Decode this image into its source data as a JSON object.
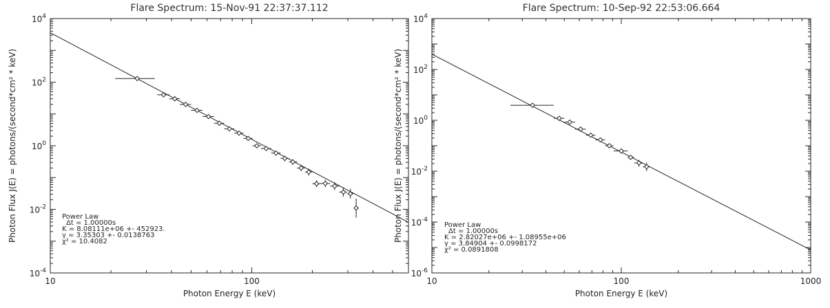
{
  "chart_data": [
    {
      "type": "scatter",
      "title": "Flare Spectrum: 15-Nov-91 22:37:37.112",
      "xlabel": "Photon Energy E (keV)",
      "ylabel": "Photon Flux   J(E) = photons/(second*cm² * keV)",
      "xscale": "log",
      "yscale": "log",
      "xlim": [
        10,
        600
      ],
      "ylim": [
        0.0001,
        10000
      ],
      "x_ticks": [
        {
          "value": 10,
          "label": "10"
        },
        {
          "value": 100,
          "label": "100"
        }
      ],
      "y_ticks": [
        {
          "value": 0.0001,
          "base": "10",
          "exp": "-4"
        },
        {
          "value": 0.01,
          "base": "10",
          "exp": "-2"
        },
        {
          "value": 1,
          "base": "10",
          "exp": "0"
        },
        {
          "value": 100,
          "base": "10",
          "exp": "2"
        },
        {
          "value": 10000,
          "base": "10",
          "exp": "4"
        }
      ],
      "fit": {
        "K": 8081110,
        "gamma": 3.35303
      },
      "points": [
        {
          "x": 27,
          "y": 130,
          "xerr": [
            21,
            33
          ],
          "yerr": [
            110,
            150
          ]
        },
        {
          "x": 36.5,
          "y": 40,
          "xerr": [
            34,
            39
          ],
          "yerr": [
            35,
            46
          ]
        },
        {
          "x": 41.5,
          "y": 30,
          "xerr": [
            39,
            44
          ],
          "yerr": [
            26,
            35
          ]
        },
        {
          "x": 47,
          "y": 20,
          "xerr": [
            44,
            50
          ],
          "yerr": [
            17,
            23
          ]
        },
        {
          "x": 53.5,
          "y": 13,
          "xerr": [
            50,
            57
          ],
          "yerr": [
            11.2,
            15
          ]
        },
        {
          "x": 61,
          "y": 8.3,
          "xerr": [
            57,
            65
          ],
          "yerr": [
            7.1,
            9.6
          ]
        },
        {
          "x": 69,
          "y": 5.1,
          "xerr": [
            65,
            73
          ],
          "yerr": [
            4.4,
            5.9
          ]
        },
        {
          "x": 77.5,
          "y": 3.4,
          "xerr": [
            73,
            82
          ],
          "yerr": [
            2.9,
            3.9
          ]
        },
        {
          "x": 86.5,
          "y": 2.5,
          "xerr": [
            82,
            91
          ],
          "yerr": [
            2.1,
            2.9
          ]
        },
        {
          "x": 96,
          "y": 1.7,
          "xerr": [
            91,
            101
          ],
          "yerr": [
            1.45,
            1.95
          ]
        },
        {
          "x": 106,
          "y": 1.0,
          "xerr": [
            101,
            111
          ],
          "yerr": [
            0.86,
            1.16
          ]
        },
        {
          "x": 118,
          "y": 0.82,
          "xerr": [
            111,
            125
          ],
          "yerr": [
            0.69,
            0.95
          ]
        },
        {
          "x": 132,
          "y": 0.59,
          "xerr": [
            125,
            139
          ],
          "yerr": [
            0.49,
            0.69
          ]
        },
        {
          "x": 146,
          "y": 0.4,
          "xerr": [
            139,
            153
          ],
          "yerr": [
            0.32,
            0.48
          ]
        },
        {
          "x": 160,
          "y": 0.31,
          "xerr": [
            153,
            168
          ],
          "yerr": [
            0.25,
            0.38
          ]
        },
        {
          "x": 176,
          "y": 0.2,
          "xerr": [
            168,
            184
          ],
          "yerr": [
            0.16,
            0.25
          ]
        },
        {
          "x": 192,
          "y": 0.15,
          "xerr": [
            184,
            200
          ],
          "yerr": [
            0.115,
            0.19
          ]
        },
        {
          "x": 210,
          "y": 0.064,
          "xerr": [
            200,
            220
          ],
          "yerr": [
            0.05,
            0.082
          ]
        },
        {
          "x": 232,
          "y": 0.065,
          "xerr": [
            220,
            245
          ],
          "yerr": [
            0.05,
            0.085
          ]
        },
        {
          "x": 258,
          "y": 0.054,
          "xerr": [
            245,
            272
          ],
          "yerr": [
            0.04,
            0.072
          ]
        },
        {
          "x": 285,
          "y": 0.035,
          "xerr": [
            272,
            298
          ],
          "yerr": [
            0.025,
            0.049
          ]
        },
        {
          "x": 309,
          "y": 0.031,
          "xerr": [
            298,
            320
          ],
          "yerr": [
            0.022,
            0.044
          ]
        },
        {
          "x": 330,
          "y": 0.011,
          "xerr": [
            322,
            338
          ],
          "yerr": [
            0.0055,
            0.022
          ]
        }
      ],
      "annotations": [
        "Power Law",
        "Δt = 1.00000s",
        "K = 8.08111e+06 +- 452923.",
        "γ = 3.35303 +- 0.0138763",
        "χ² = 10.4082"
      ],
      "legend": "bottom-left",
      "grid": false
    },
    {
      "type": "scatter",
      "title": "Flare Spectrum: 10-Sep-92 22:53:06.664",
      "xlabel": "Photon Energy E (keV)",
      "ylabel": "Photon Flux   J(E) = photons/(second*cm² * keV)",
      "xscale": "log",
      "yscale": "log",
      "xlim": [
        10,
        1000
      ],
      "ylim": [
        1e-06,
        10000
      ],
      "x_ticks": [
        {
          "value": 10,
          "label": "10"
        },
        {
          "value": 100,
          "label": "100"
        },
        {
          "value": 1000,
          "label": "1000"
        }
      ],
      "y_ticks": [
        {
          "value": 1e-06,
          "base": "10",
          "exp": "-6"
        },
        {
          "value": 0.0001,
          "base": "10",
          "exp": "-4"
        },
        {
          "value": 0.01,
          "base": "10",
          "exp": "-2"
        },
        {
          "value": 1,
          "base": "10",
          "exp": "0"
        },
        {
          "value": 100,
          "base": "10",
          "exp": "2"
        },
        {
          "value": 10000,
          "base": "10",
          "exp": "4"
        }
      ],
      "fit": {
        "K": 2820270,
        "gamma": 3.84904
      },
      "points": [
        {
          "x": 34,
          "y": 3.9,
          "xerr": [
            26,
            44
          ],
          "yerr": [
            3.3,
            4.6
          ]
        },
        {
          "x": 47,
          "y": 1.2,
          "xerr": [
            44,
            50
          ],
          "yerr": [
            1.0,
            1.4
          ]
        },
        {
          "x": 53.5,
          "y": 0.85,
          "xerr": [
            50,
            57
          ],
          "yerr": [
            0.72,
            1.0
          ]
        },
        {
          "x": 61,
          "y": 0.45,
          "xerr": [
            57,
            65
          ],
          "yerr": [
            0.38,
            0.53
          ]
        },
        {
          "x": 69,
          "y": 0.26,
          "xerr": [
            65,
            73
          ],
          "yerr": [
            0.22,
            0.31
          ]
        },
        {
          "x": 77.5,
          "y": 0.17,
          "xerr": [
            73,
            82
          ],
          "yerr": [
            0.14,
            0.2
          ]
        },
        {
          "x": 86.5,
          "y": 0.1,
          "xerr": [
            82,
            91
          ],
          "yerr": [
            0.085,
            0.12
          ]
        },
        {
          "x": 100,
          "y": 0.062,
          "xerr": [
            91,
            108
          ],
          "yerr": [
            0.052,
            0.074
          ]
        },
        {
          "x": 112,
          "y": 0.035,
          "xerr": [
            108,
            117
          ],
          "yerr": [
            0.028,
            0.043
          ]
        },
        {
          "x": 124,
          "y": 0.021,
          "xerr": [
            117,
            130
          ],
          "yerr": [
            0.015,
            0.028
          ]
        },
        {
          "x": 136,
          "y": 0.015,
          "xerr": [
            130,
            142
          ],
          "yerr": [
            0.01,
            0.022
          ]
        }
      ],
      "annotations": [
        "Power Law",
        "Δt = 1.00000s",
        "K = 2.82027e+06 +- 1.08955e+06",
        "γ = 3.84904 +- 0.0998172",
        "χ² = 0.0891808"
      ],
      "legend": "bottom-left",
      "grid": false
    }
  ]
}
